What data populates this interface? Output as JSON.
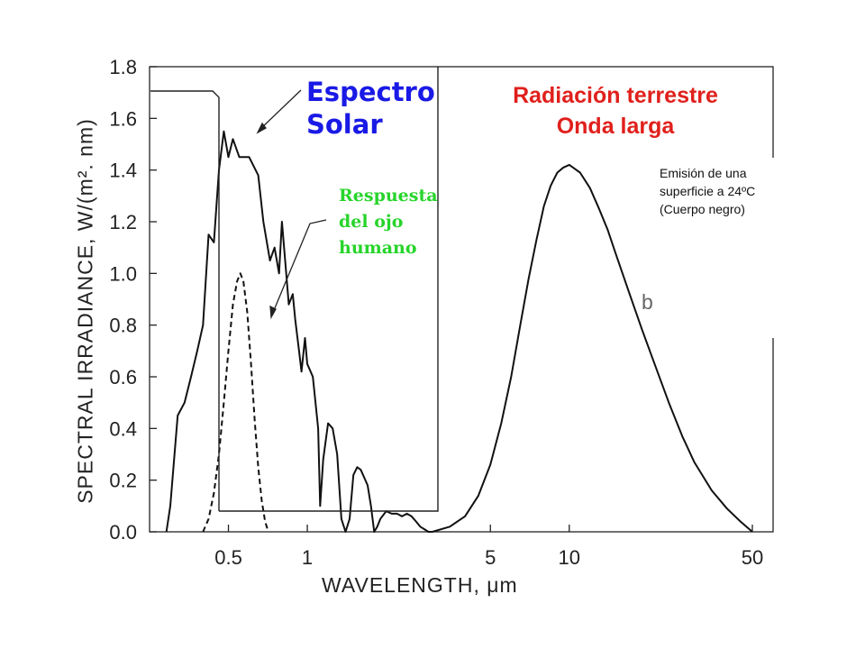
{
  "chart_data": {
    "type": "line",
    "xlabel": "WAVELENGTH, μm",
    "ylabel": "SPECTRAL IRRADIANCE, W/(m². nm)",
    "x_scale": "log",
    "xlim": [
      0.25,
      60
    ],
    "ylim": [
      0.0,
      1.8
    ],
    "y_ticks": [
      "0.0",
      "0.2",
      "0.4",
      "0.6",
      "0.8",
      "1.0",
      "1.2",
      "1.4",
      "1.6",
      "1.8"
    ],
    "x_ticks": [
      "0.5",
      "1",
      "5",
      "10",
      "50"
    ],
    "grid": false,
    "series": [
      {
        "x": [
          0.29,
          0.3,
          0.32,
          0.34,
          0.36,
          0.38,
          0.4,
          0.42,
          0.44,
          0.46,
          0.48,
          0.5,
          0.52,
          0.55,
          0.6,
          0.65,
          0.68,
          0.72,
          0.75,
          0.78,
          0.8,
          0.85,
          0.88,
          0.9,
          0.93,
          0.95,
          0.98,
          1.0,
          1.05,
          1.1,
          1.12,
          1.15,
          1.2,
          1.25,
          1.3,
          1.35,
          1.4,
          1.45,
          1.5,
          1.55,
          1.6,
          1.7,
          1.75,
          1.8,
          1.85,
          1.9,
          2.0,
          2.1,
          2.2,
          2.3,
          2.4,
          2.5,
          2.6,
          2.7,
          2.8,
          2.9,
          3.0
        ],
        "y": [
          0.0,
          0.1,
          0.45,
          0.5,
          0.6,
          0.7,
          0.8,
          1.15,
          1.12,
          1.4,
          1.55,
          1.45,
          1.52,
          1.45,
          1.45,
          1.38,
          1.2,
          1.05,
          1.1,
          1.0,
          1.2,
          0.88,
          0.92,
          0.82,
          0.7,
          0.62,
          0.75,
          0.65,
          0.6,
          0.4,
          0.1,
          0.28,
          0.42,
          0.4,
          0.3,
          0.05,
          0.0,
          0.05,
          0.22,
          0.25,
          0.24,
          0.18,
          0.1,
          0.0,
          0.02,
          0.05,
          0.08,
          0.07,
          0.07,
          0.06,
          0.07,
          0.06,
          0.04,
          0.02,
          0.01,
          0.0,
          0.0
        ]
      },
      {
        "x": [
          0.4,
          0.42,
          0.44,
          0.46,
          0.48,
          0.5,
          0.52,
          0.54,
          0.555,
          0.57,
          0.59,
          0.61,
          0.63,
          0.65,
          0.67,
          0.69,
          0.71
        ],
        "y": [
          0.0,
          0.05,
          0.15,
          0.3,
          0.5,
          0.7,
          0.88,
          0.97,
          1.0,
          0.97,
          0.85,
          0.65,
          0.43,
          0.25,
          0.12,
          0.04,
          0.0
        ]
      },
      {
        "x": [
          3.0,
          3.5,
          4.0,
          4.5,
          5.0,
          5.5,
          6.0,
          6.5,
          7.0,
          7.5,
          8.0,
          8.5,
          9.0,
          9.5,
          10.0,
          11.0,
          12.0,
          13.0,
          14.0,
          15.0,
          17.0,
          19.0,
          21.0,
          24.0,
          27.0,
          30.0,
          35.0,
          40.0,
          45.0,
          50.0
        ],
        "y": [
          0.0,
          0.02,
          0.06,
          0.14,
          0.26,
          0.42,
          0.6,
          0.8,
          0.98,
          1.13,
          1.26,
          1.34,
          1.39,
          1.41,
          1.42,
          1.39,
          1.33,
          1.25,
          1.17,
          1.08,
          0.92,
          0.78,
          0.66,
          0.5,
          0.37,
          0.27,
          0.16,
          0.09,
          0.04,
          0.0
        ]
      }
    ]
  },
  "annotations": {
    "solar_title": "Espectro\nSolar",
    "terrestrial_title": "Radiación terrestre\nOnda larga",
    "eye_response": "Respuesta\ndel ojo\nhumano",
    "blackbody_note": "Emisión de una\nsuperficie a 24ºC\n(Cuerpo negro)",
    "stray_glyph": "b"
  },
  "colors": {
    "solar_title": "#1a1ae6",
    "terrestrial_title": "#e0201c",
    "eye_response": "#27d42b",
    "curves": "#111111"
  }
}
